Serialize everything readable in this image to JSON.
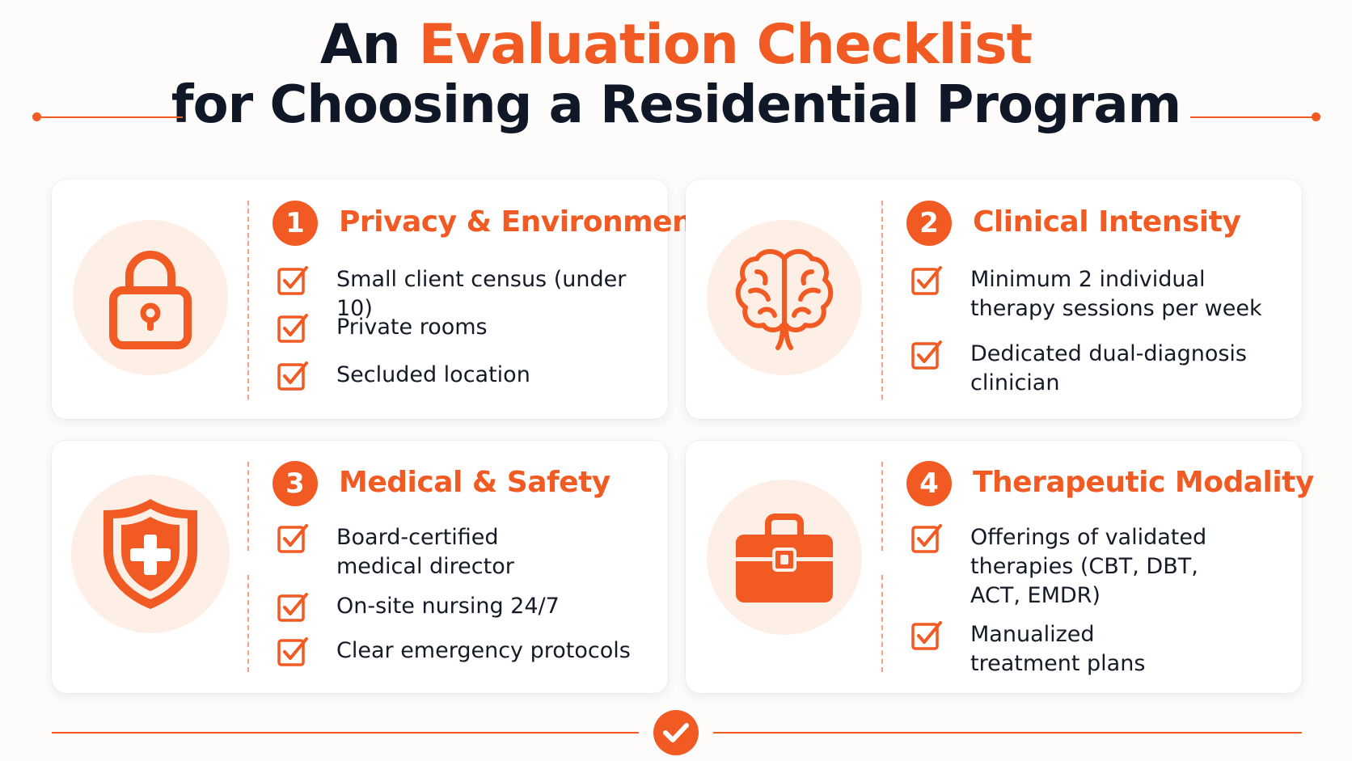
{
  "title": {
    "prefix": "An",
    "accent": "Evaluation Checklist",
    "line2": "for Choosing a Residential Program"
  },
  "colors": {
    "accent": "#f15a22",
    "dark": "#101828",
    "icon_bg": "#fdeee6"
  },
  "sections": [
    {
      "number": "1",
      "heading": "Privacy & Environment",
      "icon": "padlock-icon",
      "items": [
        "Small client census (under 10)",
        "Private rooms",
        "Secluded location"
      ]
    },
    {
      "number": "2",
      "heading": "Clinical Intensity",
      "icon": "brain-icon",
      "items": [
        "Minimum 2 individual\ntherapy sessions per week",
        "Dedicated dual-diagnosis\nclinician"
      ]
    },
    {
      "number": "3",
      "heading": "Medical & Safety",
      "icon": "shield-cross-icon",
      "items": [
        "Board-certified\nmedical director",
        "On-site nursing 24/7",
        "Clear emergency protocols"
      ]
    },
    {
      "number": "4",
      "heading": "Therapeutic Modality",
      "icon": "toolkit-briefcase-icon",
      "items": [
        "Offerings of validated\ntherapies (CBT, DBT,\nACT, EMDR)",
        "Manualized\ntreatment plans"
      ]
    }
  ],
  "footer_icon": "checkmark-circle-icon"
}
